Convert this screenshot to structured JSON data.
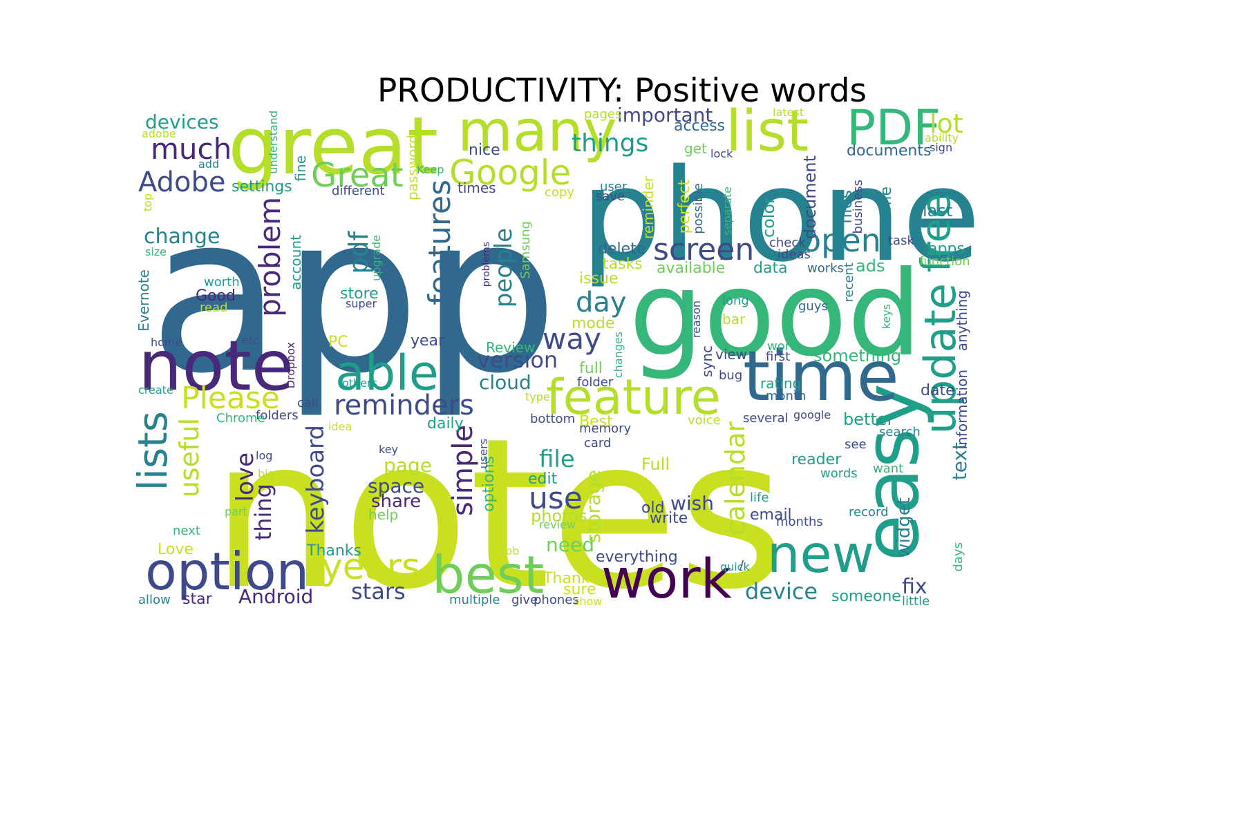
{
  "title": "PRODUCTIVITY: Positive words",
  "palette": {
    "dark_purple": "#440154",
    "purple": "#482878",
    "indigo": "#3e4a89",
    "blue": "#31688e",
    "teal": "#26828e",
    "green_teal": "#1f9e89",
    "green": "#35b779",
    "light_green": "#6ece58",
    "yellow_green": "#b5de2b",
    "yellow": "#c8e020"
  },
  "words": [
    {
      "text": "notes",
      "color": "#c8e020"
    },
    {
      "text": "app",
      "color": "#31688e"
    },
    {
      "text": "phone",
      "color": "#26828e"
    },
    {
      "text": "good",
      "color": "#35b779"
    },
    {
      "text": "great",
      "color": "#b5de2b"
    },
    {
      "text": "easy",
      "color": "#1f9e89"
    },
    {
      "text": "note",
      "color": "#482878"
    },
    {
      "text": "time",
      "color": "#31688e"
    },
    {
      "text": "list",
      "color": "#b5de2b"
    },
    {
      "text": "many",
      "color": "#b5de2b"
    },
    {
      "text": "PDF",
      "color": "#35b779"
    },
    {
      "text": "option",
      "color": "#3e4a89"
    },
    {
      "text": "best",
      "color": "#6ece58"
    },
    {
      "text": "work",
      "color": "#440154"
    },
    {
      "text": "new",
      "color": "#1f9e89"
    },
    {
      "text": "feature",
      "color": "#b5de2b"
    },
    {
      "text": "update",
      "color": "#1f9e89"
    },
    {
      "text": "free",
      "color": "#1f9e89"
    },
    {
      "text": "able",
      "color": "#1f9e89"
    },
    {
      "text": "lists",
      "color": "#26828e"
    },
    {
      "text": "Google",
      "color": "#b5de2b"
    },
    {
      "text": "Great",
      "color": "#6ece58"
    },
    {
      "text": "years",
      "color": "#c8e020"
    },
    {
      "text": "features",
      "color": "#31688e"
    },
    {
      "text": "screen",
      "color": "#3e4a89"
    },
    {
      "text": "open",
      "color": "#26828e"
    },
    {
      "text": "problem",
      "color": "#482878"
    },
    {
      "text": "reminders",
      "color": "#3e4a89"
    },
    {
      "text": "Please",
      "color": "#c8e020"
    },
    {
      "text": "much",
      "color": "#482878"
    },
    {
      "text": "Adobe",
      "color": "#3e4a89"
    },
    {
      "text": "things",
      "color": "#1f9e89"
    },
    {
      "text": "way",
      "color": "#3e4a89"
    },
    {
      "text": "calendar",
      "color": "#b5de2b"
    },
    {
      "text": "day",
      "color": "#26828e"
    },
    {
      "text": "use",
      "color": "#3e4a89"
    },
    {
      "text": "pdf",
      "color": "#26828e"
    },
    {
      "text": "simple",
      "color": "#482878"
    },
    {
      "text": "people",
      "color": "#26828e"
    },
    {
      "text": "useful",
      "color": "#b5de2b"
    },
    {
      "text": "keyboard",
      "color": "#3e4a89"
    },
    {
      "text": "love",
      "color": "#482878"
    },
    {
      "text": "thing",
      "color": "#482878"
    },
    {
      "text": "file",
      "color": "#1f9e89"
    },
    {
      "text": "version",
      "color": "#3e4a89"
    },
    {
      "text": "device",
      "color": "#26828e"
    },
    {
      "text": "stars",
      "color": "#3e4a89"
    },
    {
      "text": "Android",
      "color": "#482878"
    },
    {
      "text": "lot",
      "color": "#b5de2b"
    },
    {
      "text": "devices",
      "color": "#1f9e89"
    },
    {
      "text": "important",
      "color": "#3e4a89"
    },
    {
      "text": "change",
      "color": "#26828e"
    },
    {
      "text": "text",
      "color": "#26828e"
    },
    {
      "text": "wish",
      "color": "#3e4a89"
    },
    {
      "text": "storage",
      "color": "#b5de2b"
    },
    {
      "text": "page",
      "color": "#b5de2b"
    },
    {
      "text": "space",
      "color": "#3e4a89"
    },
    {
      "text": "share",
      "color": "#482878"
    },
    {
      "text": "fix",
      "color": "#3e4a89"
    },
    {
      "text": "widget",
      "color": "#26828e"
    },
    {
      "text": "documents",
      "color": "#31688e"
    },
    {
      "text": "cloud",
      "color": "#26828e"
    },
    {
      "text": "settings",
      "color": "#1f9e89"
    },
    {
      "text": "access",
      "color": "#31688e"
    },
    {
      "text": "Good",
      "color": "#482878"
    },
    {
      "text": "everything",
      "color": "#3e4a89"
    },
    {
      "text": "need",
      "color": "#6ece58"
    },
    {
      "text": "photos",
      "color": "#b5de2b"
    },
    {
      "text": "edit",
      "color": "#1f9e89"
    },
    {
      "text": "email",
      "color": "#3e4a89"
    },
    {
      "text": "write",
      "color": "#3e4a89"
    },
    {
      "text": "old",
      "color": "#3e4a89"
    },
    {
      "text": "Full",
      "color": "#b5de2b"
    },
    {
      "text": "reader",
      "color": "#1f9e89"
    },
    {
      "text": "color",
      "color": "#1f9e89"
    },
    {
      "text": "document",
      "color": "#3e4a89"
    },
    {
      "text": "files",
      "color": "#26828e"
    },
    {
      "text": "awesome",
      "color": "#26828e"
    },
    {
      "text": "last",
      "color": "#26828e"
    },
    {
      "text": "apps",
      "color": "#1f9e89"
    },
    {
      "text": "ads",
      "color": "#35b779"
    },
    {
      "text": "data",
      "color": "#1f9e89"
    },
    {
      "text": "available",
      "color": "#6ece58"
    },
    {
      "text": "delete",
      "color": "#31688e"
    },
    {
      "text": "tasks",
      "color": "#b5de2b"
    },
    {
      "text": "issue",
      "color": "#b5de2b"
    },
    {
      "text": "mode",
      "color": "#b5de2b"
    },
    {
      "text": "something",
      "color": "#35b779"
    },
    {
      "text": "better",
      "color": "#1f9e89"
    },
    {
      "text": "date",
      "color": "#3e4a89"
    },
    {
      "text": "information",
      "color": "#3e4a89"
    },
    {
      "text": "anything",
      "color": "#3e4a89"
    },
    {
      "text": "daily",
      "color": "#1f9e89"
    },
    {
      "text": "help",
      "color": "#6ece58"
    },
    {
      "text": "Thanks",
      "color": "#1f9e89"
    },
    {
      "text": "Thank",
      "color": "#c8e020"
    },
    {
      "text": "sure",
      "color": "#c8e020"
    },
    {
      "text": "options",
      "color": "#35b779"
    },
    {
      "text": "account",
      "color": "#1f9e89"
    },
    {
      "text": "password",
      "color": "#c8e020"
    },
    {
      "text": "Samsung",
      "color": "#6ece58"
    },
    {
      "text": "store",
      "color": "#1f9e89"
    },
    {
      "text": "year",
      "color": "#3e4a89"
    },
    {
      "text": "Review",
      "color": "#35b779"
    },
    {
      "text": "full",
      "color": "#6ece58"
    },
    {
      "text": "Best",
      "color": "#c8e020"
    },
    {
      "text": "Evernote",
      "color": "#26828e"
    },
    {
      "text": "Love",
      "color": "#c8e020"
    },
    {
      "text": "times",
      "color": "#3e4a89"
    },
    {
      "text": "nice",
      "color": "#3e4a89"
    },
    {
      "text": "reminder",
      "color": "#c8e020"
    },
    {
      "text": "perfect",
      "color": "#c8e020"
    },
    {
      "text": "possible",
      "color": "#31688e"
    },
    {
      "text": "fine",
      "color": "#1f9e89"
    },
    {
      "text": "get",
      "color": "#6ece58"
    },
    {
      "text": "lock",
      "color": "#3e4a89"
    },
    {
      "text": "sync",
      "color": "#3e4a89"
    },
    {
      "text": "view",
      "color": "#3e4a89"
    },
    {
      "text": "bar",
      "color": "#b5de2b"
    },
    {
      "text": "long",
      "color": "#1f9e89"
    },
    {
      "text": "check",
      "color": "#3e4a89"
    },
    {
      "text": "ideas",
      "color": "#3e4a89"
    },
    {
      "text": "works",
      "color": "#31688e"
    },
    {
      "text": "guys",
      "color": "#31688e"
    },
    {
      "text": "recent",
      "color": "#26828e"
    },
    {
      "text": "keys",
      "color": "#35b779"
    },
    {
      "text": "rating",
      "color": "#1f9e89"
    },
    {
      "text": "month",
      "color": "#31688e"
    },
    {
      "text": "first",
      "color": "#3e4a89"
    },
    {
      "text": "word",
      "color": "#35b779"
    },
    {
      "text": "business",
      "color": "#3e4a89"
    },
    {
      "text": "task",
      "color": "#3e4a89"
    },
    {
      "text": "function",
      "color": "#6ece58"
    },
    {
      "text": "sign",
      "color": "#3e4a89"
    },
    {
      "text": "ability",
      "color": "#b5de2b"
    },
    {
      "text": "latest",
      "color": "#b5de2b"
    },
    {
      "text": "pages",
      "color": "#b5de2b"
    },
    {
      "text": "user",
      "color": "#26828e"
    },
    {
      "text": "save",
      "color": "#3e4a89"
    },
    {
      "text": "copy",
      "color": "#c8e020"
    },
    {
      "text": "Keep",
      "color": "#35b779"
    },
    {
      "text": "different",
      "color": "#3e4a89"
    },
    {
      "text": "understand",
      "color": "#35b779"
    },
    {
      "text": "adobe",
      "color": "#b5de2b"
    },
    {
      "text": "add",
      "color": "#26828e"
    },
    {
      "text": "top",
      "color": "#b5de2b"
    },
    {
      "text": "size",
      "color": "#35b779"
    },
    {
      "text": "worth",
      "color": "#1f9e89"
    },
    {
      "text": "read",
      "color": "#b5de2b"
    },
    {
      "text": "upgrade",
      "color": "#35b779"
    },
    {
      "text": "super",
      "color": "#3e4a89"
    },
    {
      "text": "problems",
      "color": "#482878"
    },
    {
      "text": "separate",
      "color": "#35b779"
    },
    {
      "text": "reason",
      "color": "#3e4a89"
    },
    {
      "text": "changes",
      "color": "#35b779"
    },
    {
      "text": "folder",
      "color": "#3e4a89"
    },
    {
      "text": "home",
      "color": "#3e4a89"
    },
    {
      "text": "etc",
      "color": "#3e4a89"
    },
    {
      "text": "PC",
      "color": "#c8e020"
    },
    {
      "text": "Dropbox",
      "color": "#482878"
    },
    {
      "text": "call",
      "color": "#3e4a89"
    },
    {
      "text": "create",
      "color": "#1f9e89"
    },
    {
      "text": "folders",
      "color": "#3e4a89"
    },
    {
      "text": "Chrome",
      "color": "#35b779"
    },
    {
      "text": "others",
      "color": "#1f9e89"
    },
    {
      "text": "idea",
      "color": "#c8e020"
    },
    {
      "text": "key",
      "color": "#3e4a89"
    },
    {
      "text": "log",
      "color": "#3e4a89"
    },
    {
      "text": "big",
      "color": "#b5de2b"
    },
    {
      "text": "part",
      "color": "#6ece58"
    },
    {
      "text": "next",
      "color": "#35b779"
    },
    {
      "text": "users",
      "color": "#3e4a89"
    },
    {
      "text": "type",
      "color": "#b5de2b"
    },
    {
      "text": "bottom",
      "color": "#3e4a89"
    },
    {
      "text": "memory",
      "color": "#3e4a89"
    },
    {
      "text": "card",
      "color": "#3e4a89"
    },
    {
      "text": "voice",
      "color": "#b5de2b"
    },
    {
      "text": "bug",
      "color": "#3e4a89"
    },
    {
      "text": "several",
      "color": "#3e4a89"
    },
    {
      "text": "google",
      "color": "#3e4a89"
    },
    {
      "text": "search",
      "color": "#26828e"
    },
    {
      "text": "see",
      "color": "#3e4a89"
    },
    {
      "text": "want",
      "color": "#35b779"
    },
    {
      "text": "words",
      "color": "#1f9e89"
    },
    {
      "text": "life",
      "color": "#1f9e89"
    },
    {
      "text": "record",
      "color": "#26828e"
    },
    {
      "text": "months",
      "color": "#3e4a89"
    },
    {
      "text": "review",
      "color": "#6ece58"
    },
    {
      "text": "job",
      "color": "#c8e020"
    },
    {
      "text": "quick",
      "color": "#1f9e89"
    },
    {
      "text": "/",
      "color": "#3e4a89"
    },
    {
      "text": "days",
      "color": "#35b779"
    },
    {
      "text": "someone",
      "color": "#1f9e89"
    },
    {
      "text": "little",
      "color": "#1f9e89"
    },
    {
      "text": "allow",
      "color": "#26828e"
    },
    {
      "text": "star",
      "color": "#482878"
    },
    {
      "text": "multiple",
      "color": "#26828e"
    },
    {
      "text": "give",
      "color": "#3e4a89"
    },
    {
      "text": "phones",
      "color": "#3e4a89"
    },
    {
      "text": "show",
      "color": "#c8e020"
    }
  ]
}
